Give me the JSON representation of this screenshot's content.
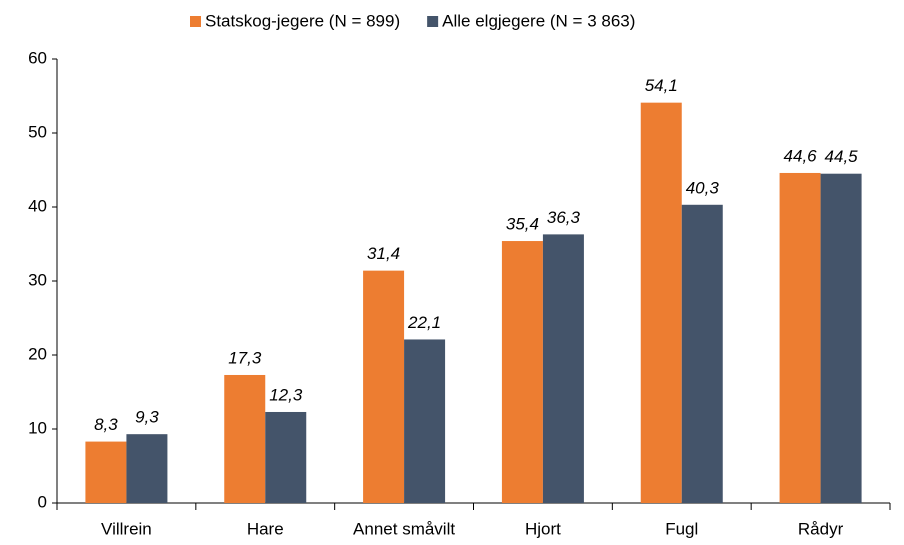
{
  "chart_data": {
    "type": "bar",
    "categories": [
      "Villrein",
      "Hare",
      "Annet småvilt",
      "Hjort",
      "Fugl",
      "Rådyr"
    ],
    "series": [
      {
        "name": "Statskog-jegere (N = 899)",
        "color": "#ed7d31",
        "values": [
          8.3,
          17.3,
          31.4,
          35.4,
          54.1,
          44.6
        ],
        "value_labels": [
          "8,3",
          "17,3",
          "31,4",
          "35,4",
          "54,1",
          "44,6"
        ]
      },
      {
        "name": "Alle elgjegere (N = 3 863)",
        "color": "#44546a",
        "values": [
          9.3,
          12.3,
          22.1,
          36.3,
          40.3,
          44.5
        ],
        "value_labels": [
          "9,3",
          "12,3",
          "22,1",
          "36,3",
          "40,3",
          "44,5"
        ]
      }
    ],
    "ylim": [
      0,
      60
    ],
    "yticks": [
      0,
      10,
      20,
      30,
      40,
      50,
      60
    ],
    "grid": false,
    "legend": "top"
  }
}
